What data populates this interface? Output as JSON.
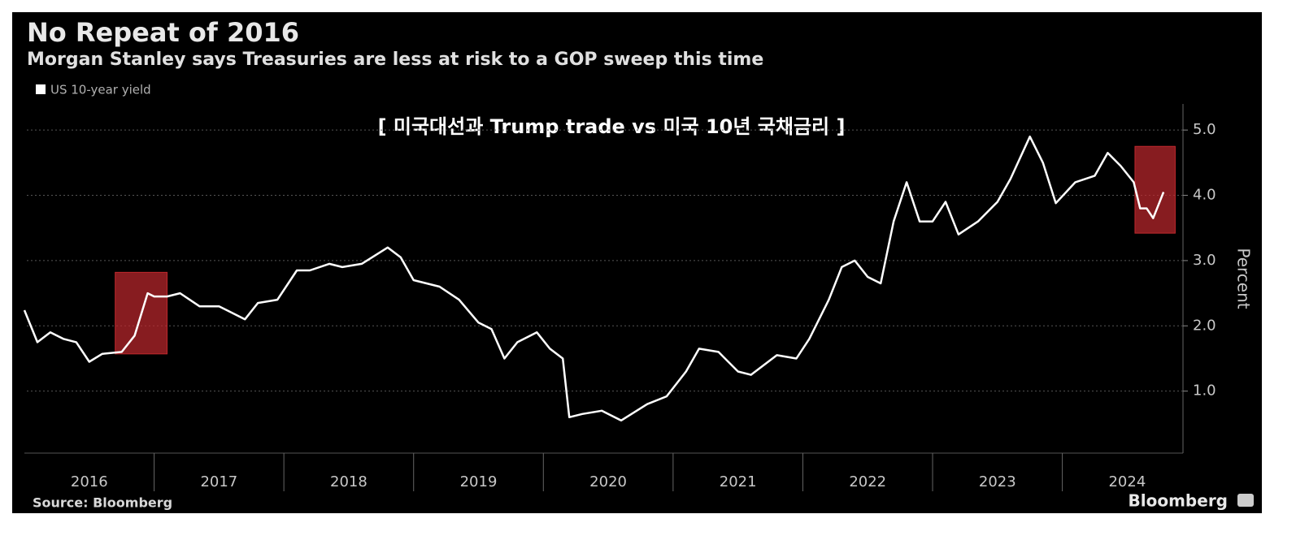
{
  "chart_data": {
    "type": "line",
    "title": "No Repeat of 2016",
    "subtitle": "Morgan Stanley says Treasuries are less at risk to a GOP sweep this time",
    "annotation": "[ 미국대선과 Trump trade vs 미국 10년 국채금리 ]",
    "y_label": "Percent",
    "source": "Source: Bloomberg",
    "brand": "Bloomberg",
    "x": [
      2016.0,
      2016.1,
      2016.2,
      2016.3,
      2016.4,
      2016.5,
      2016.6,
      2016.75,
      2016.85,
      2016.95,
      2017.0,
      2017.1,
      2017.2,
      2017.35,
      2017.5,
      2017.7,
      2017.8,
      2017.95,
      2018.1,
      2018.2,
      2018.35,
      2018.45,
      2018.6,
      2018.8,
      2018.9,
      2019.0,
      2019.2,
      2019.35,
      2019.5,
      2019.6,
      2019.7,
      2019.8,
      2019.95,
      2020.05,
      2020.15,
      2020.2,
      2020.3,
      2020.45,
      2020.6,
      2020.8,
      2020.95,
      2021.1,
      2021.2,
      2021.35,
      2021.5,
      2021.6,
      2021.8,
      2021.95,
      2022.05,
      2022.2,
      2022.3,
      2022.4,
      2022.5,
      2022.6,
      2022.7,
      2022.8,
      2022.9,
      2023.0,
      2023.1,
      2023.2,
      2023.35,
      2023.5,
      2023.6,
      2023.75,
      2023.85,
      2023.95,
      2024.1,
      2024.25,
      2024.35,
      2024.45,
      2024.55,
      2024.6,
      2024.65,
      2024.7,
      2024.78
    ],
    "series": [
      {
        "name": "US 10-year yield",
        "color": "#ffffff",
        "values": [
          2.24,
          1.75,
          1.9,
          1.8,
          1.75,
          1.45,
          1.57,
          1.6,
          1.85,
          2.5,
          2.45,
          2.45,
          2.5,
          2.3,
          2.3,
          2.1,
          2.35,
          2.4,
          2.85,
          2.85,
          2.95,
          2.9,
          2.95,
          3.2,
          3.05,
          2.7,
          2.6,
          2.4,
          2.05,
          1.95,
          1.5,
          1.75,
          1.9,
          1.65,
          1.5,
          0.6,
          0.65,
          0.7,
          0.55,
          0.8,
          0.92,
          1.3,
          1.65,
          1.6,
          1.3,
          1.25,
          1.55,
          1.5,
          1.8,
          2.4,
          2.9,
          3.0,
          2.75,
          2.65,
          3.6,
          4.2,
          3.6,
          3.6,
          3.9,
          3.4,
          3.6,
          3.9,
          4.25,
          4.9,
          4.5,
          3.88,
          4.2,
          4.3,
          4.65,
          4.45,
          4.2,
          3.8,
          3.8,
          3.65,
          4.05
        ]
      }
    ],
    "xlim": [
      2016,
      2024.93
    ],
    "xticks": [
      2016,
      2017,
      2018,
      2019,
      2020,
      2021,
      2022,
      2023,
      2024
    ],
    "ylim": [
      0.05,
      5.4
    ],
    "yticks": [
      {
        "value": 1,
        "label": "1.0"
      },
      {
        "value": 2,
        "label": "2.0"
      },
      {
        "value": 3,
        "label": "3.0"
      },
      {
        "value": 4,
        "label": "4.0"
      },
      {
        "value": 5,
        "label": "5.0"
      }
    ],
    "grid": true,
    "highlight_color": "#c0282d",
    "highlights": [
      {
        "x": [
          2016.7,
          2017.1
        ],
        "y": [
          1.57,
          2.82
        ]
      },
      {
        "x": [
          2024.56,
          2024.87
        ],
        "y": [
          3.42,
          4.75
        ]
      }
    ]
  }
}
